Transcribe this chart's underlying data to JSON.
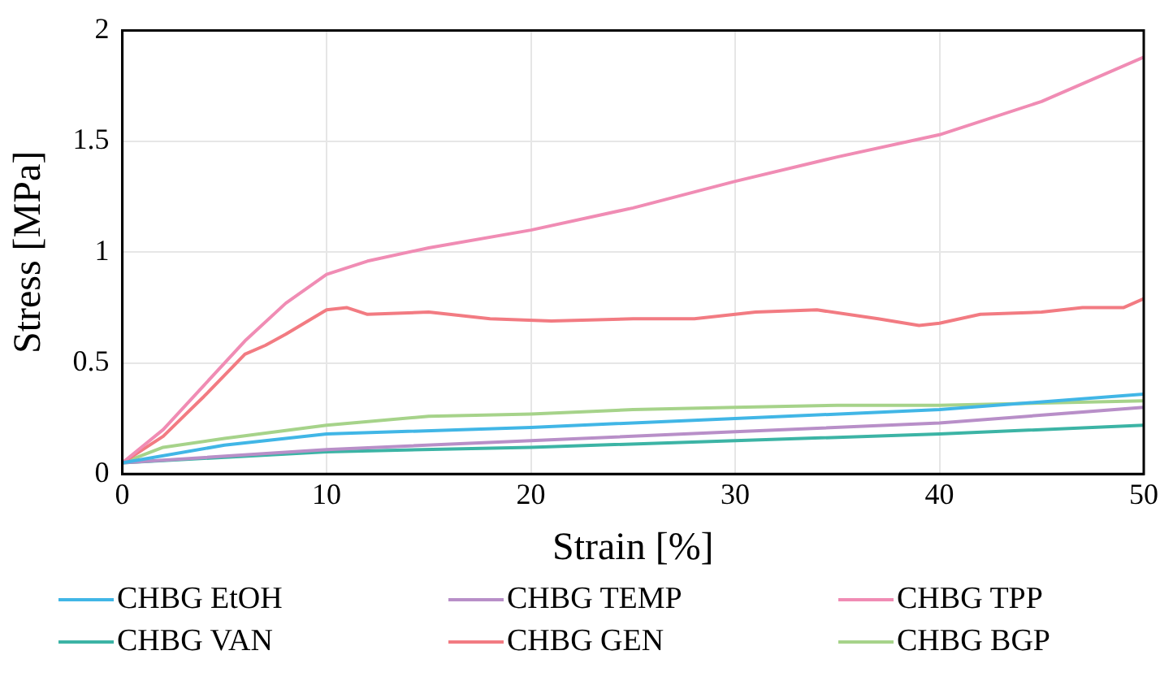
{
  "chart_data": {
    "type": "line",
    "xlabel": "Strain [%]",
    "ylabel": "Stress [MPa]",
    "xlim": [
      0,
      50
    ],
    "xticks": [
      0,
      10,
      20,
      30,
      40,
      50
    ],
    "ylim": [
      0,
      2
    ],
    "yticks": [
      0,
      0.5,
      1,
      1.5,
      2
    ],
    "grid": true,
    "legend": "bottom",
    "marker": "none",
    "line_style": "solid",
    "series": [
      {
        "name": "CHBG EtOH",
        "color": "#41b6e6",
        "x": [
          0,
          5,
          10,
          20,
          30,
          40,
          50
        ],
        "values": [
          0.05,
          0.13,
          0.18,
          0.21,
          0.25,
          0.29,
          0.36
        ]
      },
      {
        "name": "CHBG TEMP",
        "color": "#b88fc8",
        "x": [
          0,
          10,
          20,
          30,
          40,
          50
        ],
        "values": [
          0.05,
          0.11,
          0.15,
          0.19,
          0.23,
          0.3
        ]
      },
      {
        "name": "CHBG TPP",
        "color": "#f08cb4",
        "x": [
          0,
          2,
          4,
          6,
          8,
          10,
          12,
          15,
          20,
          25,
          30,
          35,
          40,
          45,
          50
        ],
        "values": [
          0.05,
          0.2,
          0.4,
          0.6,
          0.77,
          0.9,
          0.96,
          1.02,
          1.1,
          1.2,
          1.32,
          1.43,
          1.53,
          1.68,
          1.88
        ]
      },
      {
        "name": "CHBG VAN",
        "color": "#3cb4a5",
        "x": [
          0,
          10,
          20,
          30,
          40,
          50
        ],
        "values": [
          0.05,
          0.1,
          0.12,
          0.15,
          0.18,
          0.22
        ]
      },
      {
        "name": "CHBG GEN",
        "color": "#f27b82",
        "x": [
          0,
          2,
          4,
          6,
          7,
          8,
          10,
          11,
          12,
          15,
          18,
          21,
          25,
          28,
          31,
          34,
          37,
          39,
          40,
          42,
          45,
          47,
          49,
          50
        ],
        "values": [
          0.05,
          0.17,
          0.35,
          0.54,
          0.58,
          0.63,
          0.74,
          0.75,
          0.72,
          0.73,
          0.7,
          0.69,
          0.7,
          0.7,
          0.73,
          0.74,
          0.7,
          0.67,
          0.68,
          0.72,
          0.73,
          0.75,
          0.75,
          0.79
        ]
      },
      {
        "name": "CHBG BGP",
        "color": "#a6d38a",
        "x": [
          0,
          2,
          5,
          10,
          15,
          20,
          25,
          30,
          35,
          40,
          45,
          50
        ],
        "values": [
          0.05,
          0.12,
          0.16,
          0.22,
          0.26,
          0.27,
          0.29,
          0.3,
          0.31,
          0.31,
          0.32,
          0.33
        ]
      }
    ]
  }
}
